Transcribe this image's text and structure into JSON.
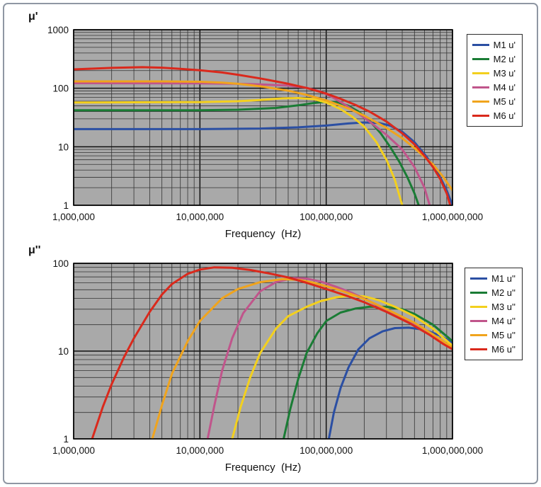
{
  "chart_data": [
    {
      "type": "line",
      "ylabel": "μ'",
      "xlabel": "Frequency  (Hz)",
      "xscale": "log",
      "yscale": "log",
      "grid": true,
      "legend_position": "right",
      "plot_bg": "#a9a9a9",
      "xlim": [
        1000000,
        1000000000
      ],
      "ylim": [
        1,
        1000
      ],
      "x_tick_values": [
        1000000,
        10000000,
        100000000,
        1000000000
      ],
      "x_tick_labels": [
        "1,000,000",
        "10,000,000",
        "100,000,000",
        "1,000,000,000"
      ],
      "y_tick_values": [
        1,
        10,
        100,
        1000
      ],
      "y_tick_labels": [
        "1",
        "10",
        "100",
        "1000"
      ],
      "series": [
        {
          "name": "M1 u'",
          "color": "#2b4fa3",
          "points": [
            [
              1000000,
              20
            ],
            [
              3000000,
              20
            ],
            [
              10000000,
              20
            ],
            [
              30000000,
              20.5
            ],
            [
              60000000,
              21.5
            ],
            [
              100000000,
              23
            ],
            [
              150000000,
              25
            ],
            [
              200000000,
              26
            ],
            [
              260000000,
              25.5
            ],
            [
              320000000,
              23
            ],
            [
              400000000,
              18
            ],
            [
              500000000,
              12
            ],
            [
              600000000,
              7.5
            ],
            [
              700000000,
              4.8
            ],
            [
              800000000,
              3
            ],
            [
              900000000,
              1.8
            ],
            [
              1000000000,
              1
            ]
          ]
        },
        {
          "name": "M2 u'",
          "color": "#1a7c35",
          "points": [
            [
              1000000,
              42
            ],
            [
              10000000,
              42
            ],
            [
              20000000,
              43
            ],
            [
              40000000,
              46
            ],
            [
              60000000,
              51
            ],
            [
              80000000,
              56
            ],
            [
              100000000,
              59
            ],
            [
              125000000,
              57
            ],
            [
              150000000,
              50
            ],
            [
              180000000,
              40
            ],
            [
              220000000,
              28
            ],
            [
              270000000,
              17
            ],
            [
              320000000,
              10
            ],
            [
              380000000,
              5.5
            ],
            [
              440000000,
              3
            ],
            [
              500000000,
              1.6
            ],
            [
              540000000,
              1
            ]
          ]
        },
        {
          "name": "M3 u'",
          "color": "#f3d01e",
          "points": [
            [
              1000000,
              57
            ],
            [
              10000000,
              58
            ],
            [
              20000000,
              60
            ],
            [
              30000000,
              63
            ],
            [
              45000000,
              67
            ],
            [
              60000000,
              68
            ],
            [
              80000000,
              65
            ],
            [
              100000000,
              57
            ],
            [
              130000000,
              44
            ],
            [
              160000000,
              33
            ],
            [
              200000000,
              22
            ],
            [
              250000000,
              12
            ],
            [
              300000000,
              6
            ],
            [
              350000000,
              2.7
            ],
            [
              400000000,
              1
            ]
          ]
        },
        {
          "name": "M4 u'",
          "color": "#c0558b",
          "points": [
            [
              1000000,
              122
            ],
            [
              10000000,
              121
            ],
            [
              20000000,
              119
            ],
            [
              30000000,
              116
            ],
            [
              50000000,
              111
            ],
            [
              70000000,
              102
            ],
            [
              90000000,
              88
            ],
            [
              110000000,
              72
            ],
            [
              140000000,
              53
            ],
            [
              180000000,
              37
            ],
            [
              220000000,
              27
            ],
            [
              300000000,
              16
            ],
            [
              400000000,
              9
            ],
            [
              500000000,
              4.5
            ],
            [
              600000000,
              2
            ],
            [
              660000000,
              1
            ]
          ]
        },
        {
          "name": "M5 u'",
          "color": "#f0a41d",
          "points": [
            [
              1000000,
              131
            ],
            [
              5000000,
              131
            ],
            [
              10000000,
              129
            ],
            [
              15000000,
              125
            ],
            [
              20000000,
              119
            ],
            [
              30000000,
              108
            ],
            [
              50000000,
              91
            ],
            [
              70000000,
              77
            ],
            [
              100000000,
              62
            ],
            [
              150000000,
              45
            ],
            [
              200000000,
              34
            ],
            [
              300000000,
              21
            ],
            [
              400000000,
              14
            ],
            [
              500000000,
              9.5
            ],
            [
              700000000,
              5
            ],
            [
              850000000,
              3
            ],
            [
              1000000000,
              1.8
            ]
          ]
        },
        {
          "name": "M6 u'",
          "color": "#da291c",
          "points": [
            [
              1000000,
              210
            ],
            [
              2000000,
              223
            ],
            [
              3500000,
              229
            ],
            [
              5000000,
              225
            ],
            [
              7000000,
              215
            ],
            [
              10000000,
              203
            ],
            [
              15000000,
              186
            ],
            [
              20000000,
              170
            ],
            [
              30000000,
              147
            ],
            [
              40000000,
              131
            ],
            [
              50000000,
              119
            ],
            [
              70000000,
              101
            ],
            [
              100000000,
              81
            ],
            [
              130000000,
              66
            ],
            [
              170000000,
              52
            ],
            [
              220000000,
              40
            ],
            [
              300000000,
              27
            ],
            [
              400000000,
              17
            ],
            [
              500000000,
              11
            ],
            [
              600000000,
              7
            ],
            [
              700000000,
              4.5
            ],
            [
              800000000,
              2.8
            ],
            [
              900000000,
              1.6
            ],
            [
              960000000,
              1
            ]
          ]
        }
      ]
    },
    {
      "type": "line",
      "ylabel": "μ''",
      "xlabel": "Frequency  (Hz)",
      "xscale": "log",
      "yscale": "log",
      "grid": true,
      "legend_position": "right",
      "plot_bg": "#a9a9a9",
      "xlim": [
        1000000,
        1000000000
      ],
      "ylim": [
        1,
        100
      ],
      "x_tick_values": [
        1000000,
        10000000,
        100000000,
        1000000000
      ],
      "x_tick_labels": [
        "1,000,000",
        "10,000,000",
        "100,000,000",
        "1,000,000,000"
      ],
      "y_tick_values": [
        1,
        10,
        100
      ],
      "y_tick_labels": [
        "1",
        "10",
        "100"
      ],
      "series": [
        {
          "name": "M1 u''",
          "color": "#2b4fa3",
          "points": [
            [
              105000000,
              1
            ],
            [
              115000000,
              2
            ],
            [
              130000000,
              3.8
            ],
            [
              150000000,
              6.5
            ],
            [
              180000000,
              10.5
            ],
            [
              220000000,
              14
            ],
            [
              280000000,
              16.8
            ],
            [
              350000000,
              18.3
            ],
            [
              450000000,
              18.5
            ],
            [
              600000000,
              17.5
            ],
            [
              800000000,
              15
            ],
            [
              1000000000,
              12.5
            ]
          ]
        },
        {
          "name": "M2 u''",
          "color": "#1a7c35",
          "points": [
            [
              46000000,
              1
            ],
            [
              52000000,
              2.2
            ],
            [
              60000000,
              4.8
            ],
            [
              70000000,
              9.5
            ],
            [
              85000000,
              16
            ],
            [
              100000000,
              22
            ],
            [
              130000000,
              27.5
            ],
            [
              170000000,
              30.5
            ],
            [
              220000000,
              32
            ],
            [
              300000000,
              32
            ],
            [
              400000000,
              30
            ],
            [
              500000000,
              26.5
            ],
            [
              700000000,
              20
            ],
            [
              1000000000,
              13
            ]
          ]
        },
        {
          "name": "M3 u''",
          "color": "#f3d01e",
          "points": [
            [
              18000000,
              1
            ],
            [
              21000000,
              2.3
            ],
            [
              25000000,
              5
            ],
            [
              30000000,
              9.5
            ],
            [
              40000000,
              18
            ],
            [
              50000000,
              25
            ],
            [
              70000000,
              32
            ],
            [
              90000000,
              37
            ],
            [
              120000000,
              41
            ],
            [
              160000000,
              43
            ],
            [
              200000000,
              42
            ],
            [
              260000000,
              38
            ],
            [
              350000000,
              32
            ],
            [
              500000000,
              25
            ],
            [
              700000000,
              18
            ],
            [
              1000000000,
              11.5
            ]
          ]
        },
        {
          "name": "M4 u''",
          "color": "#c0558b",
          "points": [
            [
              11500000,
              1
            ],
            [
              13000000,
              2.4
            ],
            [
              15000000,
              6
            ],
            [
              18000000,
              14
            ],
            [
              22000000,
              27
            ],
            [
              30000000,
              48
            ],
            [
              40000000,
              61
            ],
            [
              55000000,
              68
            ],
            [
              70000000,
              67
            ],
            [
              90000000,
              62
            ],
            [
              120000000,
              54
            ],
            [
              160000000,
              46
            ],
            [
              220000000,
              37
            ],
            [
              300000000,
              29
            ],
            [
              450000000,
              22
            ],
            [
              700000000,
              15
            ],
            [
              1000000000,
              10.5
            ]
          ]
        },
        {
          "name": "M5 u''",
          "color": "#f0a41d",
          "points": [
            [
              4200000,
              1
            ],
            [
              5000000,
              2.4
            ],
            [
              6000000,
              5.5
            ],
            [
              8000000,
              13
            ],
            [
              10000000,
              22
            ],
            [
              15000000,
              40
            ],
            [
              20000000,
              51
            ],
            [
              30000000,
              61
            ],
            [
              45000000,
              66
            ],
            [
              60000000,
              65
            ],
            [
              80000000,
              60
            ],
            [
              120000000,
              51
            ],
            [
              170000000,
              43
            ],
            [
              240000000,
              35
            ],
            [
              350000000,
              27
            ],
            [
              500000000,
              21
            ],
            [
              700000000,
              15.5
            ],
            [
              1000000000,
              11
            ]
          ]
        },
        {
          "name": "M6 u''",
          "color": "#da291c",
          "points": [
            [
              1400000,
              1
            ],
            [
              1700000,
              2.3
            ],
            [
              2000000,
              4.2
            ],
            [
              2500000,
              8.5
            ],
            [
              3000000,
              14
            ],
            [
              4000000,
              28
            ],
            [
              5000000,
              44
            ],
            [
              6000000,
              58
            ],
            [
              8000000,
              76
            ],
            [
              10000000,
              85
            ],
            [
              13000000,
              90
            ],
            [
              18000000,
              89
            ],
            [
              25000000,
              84
            ],
            [
              35000000,
              77
            ],
            [
              50000000,
              69
            ],
            [
              70000000,
              60
            ],
            [
              100000000,
              51
            ],
            [
              150000000,
              42
            ],
            [
              200000000,
              36
            ],
            [
              300000000,
              28
            ],
            [
              450000000,
              21
            ],
            [
              650000000,
              15.5
            ],
            [
              850000000,
              12
            ],
            [
              1000000000,
              10.5
            ]
          ]
        }
      ]
    }
  ]
}
